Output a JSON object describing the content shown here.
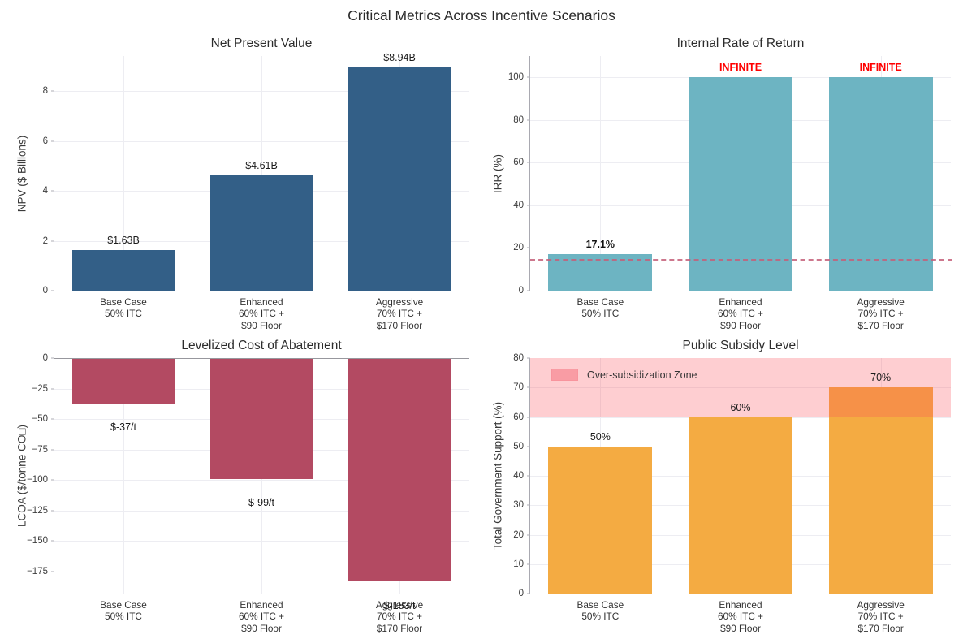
{
  "figure_title": "Critical Metrics Across Incentive Scenarios",
  "categories": [
    "Base Case\n50% ITC",
    "Enhanced\n60% ITC +\n$90 Floor",
    "Aggressive\n70% ITC +\n$170 Floor"
  ],
  "chart_data": [
    {
      "id": "npv",
      "type": "bar",
      "title": "Net Present Value",
      "ylabel": "NPV ($ Billions)",
      "ylim": [
        0,
        9.4
      ],
      "yticks": [
        0,
        2,
        4,
        6,
        8
      ],
      "values": [
        1.63,
        4.61,
        8.94
      ],
      "bar_labels": [
        "$1.63B",
        "$4.61B",
        "$8.94B"
      ],
      "bar_color": "#335f87",
      "grid": true,
      "label_pos": "above"
    },
    {
      "id": "irr",
      "type": "bar",
      "title": "Internal Rate of Return",
      "ylabel": "IRR (%)",
      "ylim": [
        0,
        110
      ],
      "yticks": [
        0,
        20,
        40,
        60,
        80,
        100
      ],
      "values": [
        17.1,
        100,
        100
      ],
      "bar_labels": [
        "17.1%",
        "INFINITE",
        "INFINITE"
      ],
      "bar_label_colors": [
        "#111111",
        "#ff0000",
        "#ff0000"
      ],
      "bar_label_bold": true,
      "bar_color": "#6db4c2",
      "grid": true,
      "label_pos": "above",
      "hline": {
        "y": 15,
        "color": "#c5607a",
        "style": "dashed"
      }
    },
    {
      "id": "lcoa",
      "type": "bar",
      "title": "Levelized Cost of Abatement",
      "ylabel": "LCOA ($/tonne CO□)",
      "ylim": [
        -193,
        0
      ],
      "yticks": [
        0,
        -25,
        -50,
        -75,
        -100,
        -125,
        -150,
        -175
      ],
      "values": [
        -37,
        -99,
        -183
      ],
      "bar_labels": [
        "$-37/t",
        "$-99/t",
        "$-183/t"
      ],
      "bar_color": "#b34a62",
      "grid": true,
      "label_pos": "below",
      "label_shift": 15,
      "zero_line": true
    },
    {
      "id": "subsidy",
      "type": "bar",
      "title": "Public Subsidy Level",
      "ylabel": "Total Government Support (%)",
      "ylim": [
        0,
        80
      ],
      "yticks": [
        0,
        10,
        20,
        30,
        40,
        50,
        60,
        70,
        80
      ],
      "values": [
        50,
        60,
        70
      ],
      "bar_labels": [
        "50%",
        "60%",
        "70%"
      ],
      "bar_color": "#f4ab42",
      "grid": true,
      "label_pos": "above",
      "zone": {
        "from": 60,
        "to": 80,
        "color": "rgba(250,80,90,0.28)",
        "label": "Over-subsidization Zone",
        "legend_position": "upper left"
      }
    }
  ]
}
